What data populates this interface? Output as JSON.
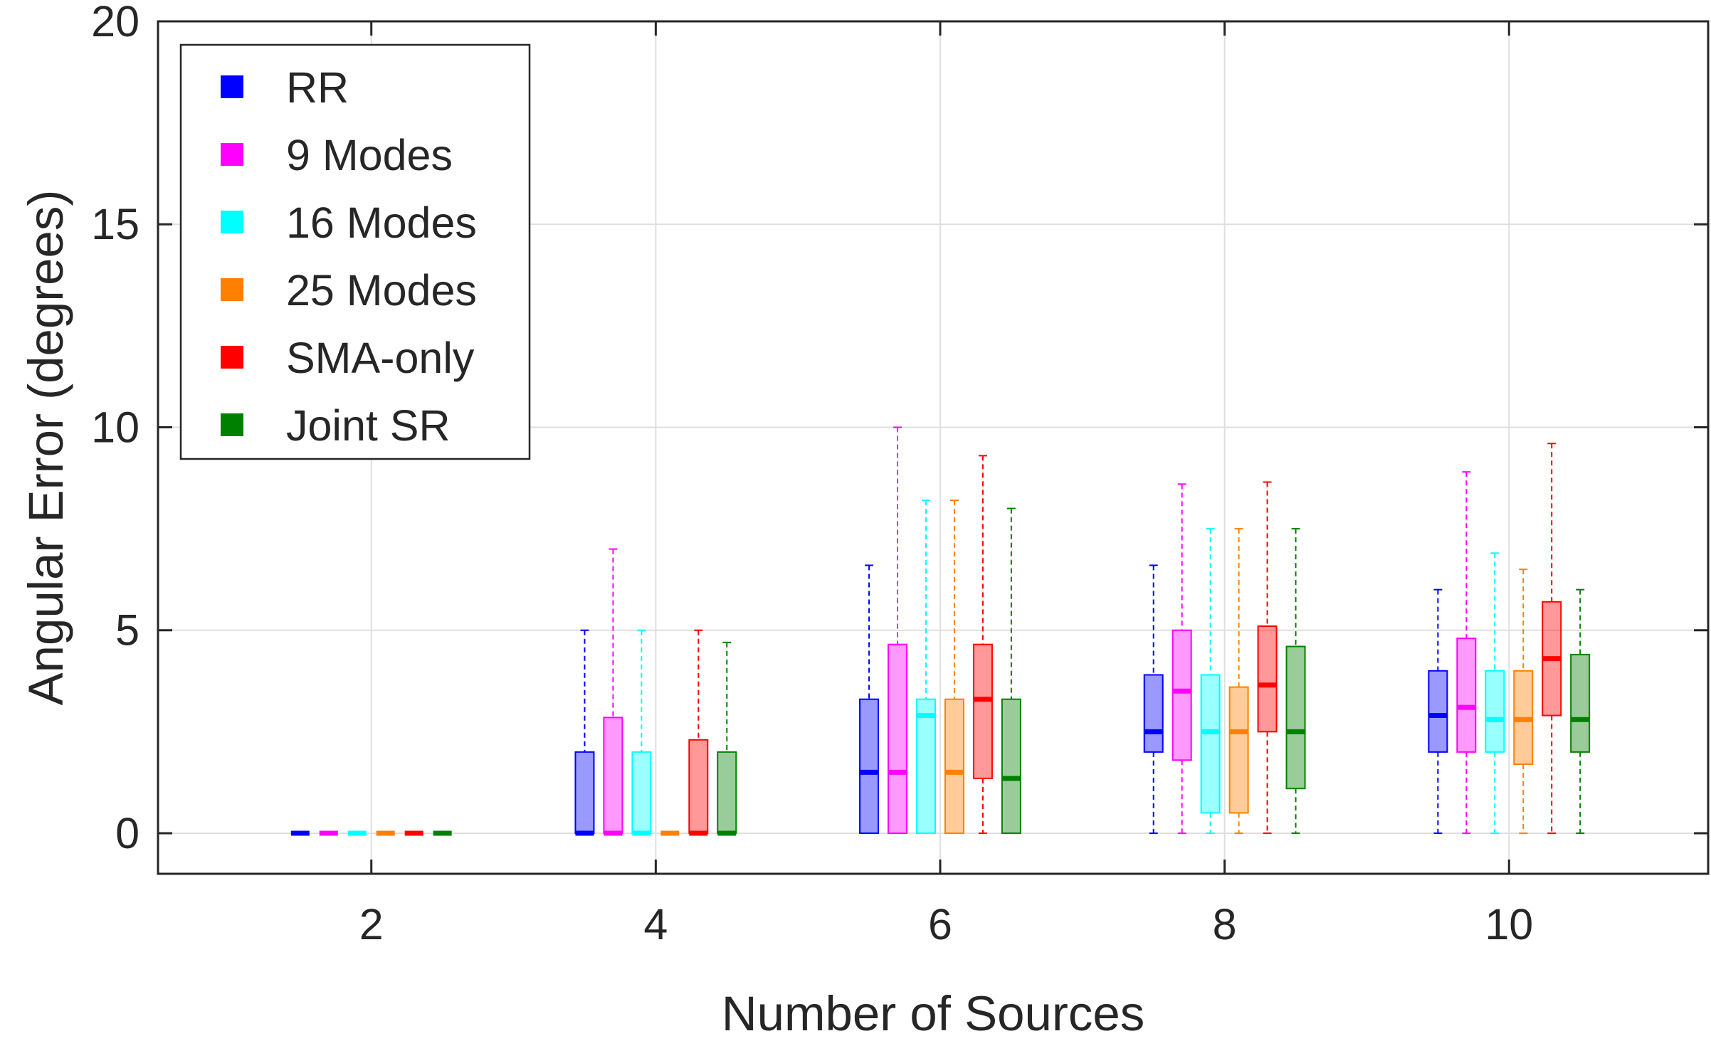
{
  "chart_data": {
    "type": "box",
    "title": "",
    "xlabel": "Number of Sources",
    "ylabel": "Angular Error (degrees)",
    "ylim": [
      -1,
      20
    ],
    "xlim": [
      0.5,
      11.4
    ],
    "grid": true,
    "legend_position": "top-left",
    "categories": [
      "2",
      "4",
      "6",
      "8",
      "10"
    ],
    "x_ticks": [
      2,
      4,
      6,
      8,
      10
    ],
    "y_ticks": [
      0,
      5,
      10,
      15,
      20
    ],
    "group_offsets": [
      -0.5,
      -0.3,
      -0.1,
      0.1,
      0.3,
      0.5
    ],
    "series": [
      {
        "name": "RR",
        "color": "#0000FF",
        "boxes": [
          {
            "min": 0,
            "q1": 0,
            "median": 0,
            "q3": 0,
            "max": 0
          },
          {
            "min": 0,
            "q1": 0,
            "median": 0,
            "q3": 2.0,
            "max": 5.0
          },
          {
            "min": 0,
            "q1": 0,
            "median": 1.5,
            "q3": 3.3,
            "max": 6.6
          },
          {
            "min": 0,
            "q1": 2.0,
            "median": 2.5,
            "q3": 3.9,
            "max": 6.6
          },
          {
            "min": 0,
            "q1": 2.0,
            "median": 2.9,
            "q3": 4.0,
            "max": 6.0
          }
        ]
      },
      {
        "name": "9 Modes",
        "color": "#FF00FF",
        "boxes": [
          {
            "min": 0,
            "q1": 0,
            "median": 0,
            "q3": 0,
            "max": 0
          },
          {
            "min": 0,
            "q1": 0,
            "median": 0,
            "q3": 2.85,
            "max": 7.0
          },
          {
            "min": 0,
            "q1": 0,
            "median": 1.5,
            "q3": 4.65,
            "max": 10.0
          },
          {
            "min": 0,
            "q1": 1.8,
            "median": 3.5,
            "q3": 5.0,
            "max": 8.6
          },
          {
            "min": 0,
            "q1": 2.0,
            "median": 3.1,
            "q3": 4.8,
            "max": 8.9
          }
        ]
      },
      {
        "name": "16 Modes",
        "color": "#00FFFF",
        "boxes": [
          {
            "min": 0,
            "q1": 0,
            "median": 0,
            "q3": 0,
            "max": 0
          },
          {
            "min": 0,
            "q1": 0,
            "median": 0,
            "q3": 2.0,
            "max": 5.0
          },
          {
            "min": 0,
            "q1": 0,
            "median": 2.9,
            "q3": 3.3,
            "max": 8.2
          },
          {
            "min": 0,
            "q1": 0.5,
            "median": 2.5,
            "q3": 3.9,
            "max": 7.5
          },
          {
            "min": 0,
            "q1": 2.0,
            "median": 2.8,
            "q3": 4.0,
            "max": 6.9
          }
        ]
      },
      {
        "name": "25 Modes",
        "color": "#FF8000",
        "boxes": [
          {
            "min": 0,
            "q1": 0,
            "median": 0,
            "q3": 0,
            "max": 0
          },
          {
            "min": 0,
            "q1": 0,
            "median": 0,
            "q3": 0,
            "max": 0
          },
          {
            "min": 0,
            "q1": 0,
            "median": 1.5,
            "q3": 3.3,
            "max": 8.2
          },
          {
            "min": 0,
            "q1": 0.5,
            "median": 2.5,
            "q3": 3.6,
            "max": 7.5
          },
          {
            "min": 0,
            "q1": 1.7,
            "median": 2.8,
            "q3": 4.0,
            "max": 6.5
          }
        ]
      },
      {
        "name": "SMA-only",
        "color": "#FF0000",
        "boxes": [
          {
            "min": 0,
            "q1": 0,
            "median": 0,
            "q3": 0,
            "max": 0
          },
          {
            "min": 0,
            "q1": 0,
            "median": 0,
            "q3": 2.3,
            "max": 5.0
          },
          {
            "min": 0,
            "q1": 1.35,
            "median": 3.3,
            "q3": 4.65,
            "max": 9.3
          },
          {
            "min": 0,
            "q1": 2.5,
            "median": 3.65,
            "q3": 5.1,
            "max": 8.65
          },
          {
            "min": 0,
            "q1": 2.9,
            "median": 4.3,
            "q3": 5.7,
            "max": 9.6
          }
        ]
      },
      {
        "name": "Joint SR",
        "color": "#008000",
        "boxes": [
          {
            "min": 0,
            "q1": 0,
            "median": 0,
            "q3": 0,
            "max": 0
          },
          {
            "min": 0,
            "q1": 0,
            "median": 0,
            "q3": 2.0,
            "max": 4.7
          },
          {
            "min": 0,
            "q1": 0,
            "median": 1.35,
            "q3": 3.3,
            "max": 8.0
          },
          {
            "min": 0,
            "q1": 1.1,
            "median": 2.5,
            "q3": 4.6,
            "max": 7.5
          },
          {
            "min": 0,
            "q1": 2.0,
            "median": 2.8,
            "q3": 4.4,
            "max": 6.0
          }
        ]
      }
    ]
  }
}
